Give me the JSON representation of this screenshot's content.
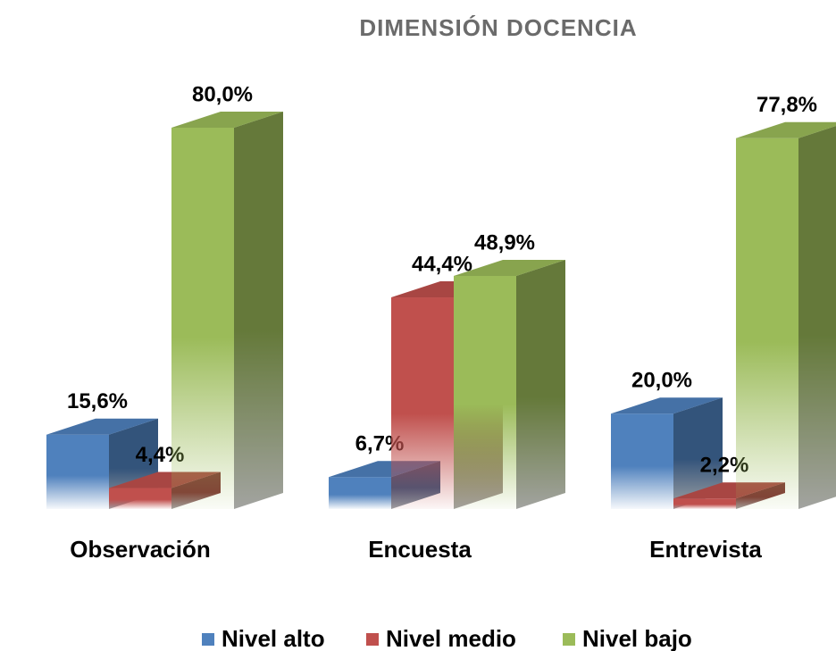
{
  "chart_data": {
    "type": "bar3d",
    "title": "DIMENSIÓN DOCENCIA",
    "categories": [
      "Observación",
      "Encuesta",
      "Entrevista"
    ],
    "series": [
      {
        "name": "Nivel alto",
        "color": "#4f81bd",
        "values": [
          15.6,
          6.7,
          20.0
        ],
        "value_labels": [
          "15,6%",
          "6,7%",
          "20,0%"
        ]
      },
      {
        "name": "Nivel medio",
        "color": "#c0504d",
        "values": [
          4.4,
          44.4,
          2.2
        ],
        "value_labels": [
          "4,4%",
          "44,4%",
          "2,2%"
        ]
      },
      {
        "name": "Nivel bajo",
        "color": "#9bbb59",
        "values": [
          80.0,
          48.9,
          77.8
        ],
        "value_labels": [
          "80,0%",
          "48,9%",
          "77,8%"
        ]
      }
    ]
  }
}
